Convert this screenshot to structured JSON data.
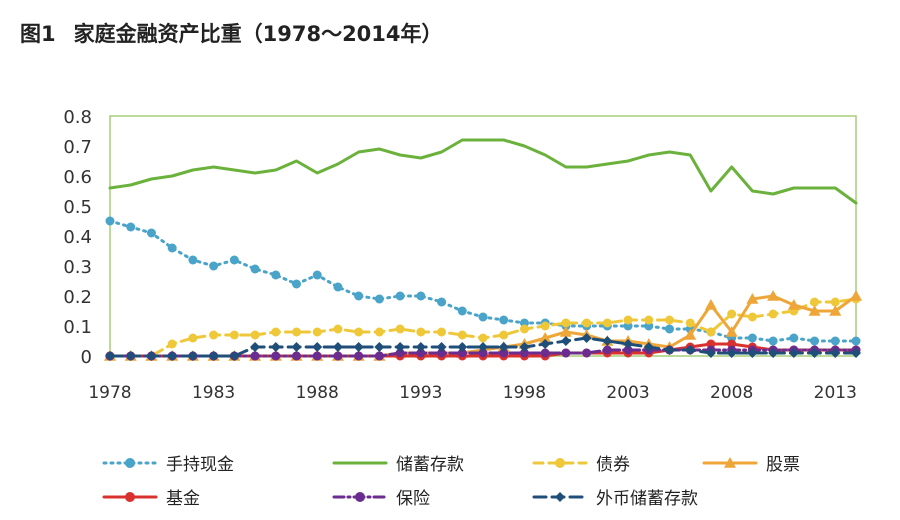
{
  "title": {
    "figure": "图1",
    "text": "家庭金融资产比重（1978～2014年）"
  },
  "chart_data": {
    "type": "line",
    "x_ticks": [
      "1978",
      "1983",
      "1988",
      "1993",
      "1998",
      "2003",
      "2008",
      "2013"
    ],
    "y_ticks": [
      "0.8",
      "0.7",
      "0.6",
      "0.5",
      "0.4",
      "0.3",
      "0.2",
      "0.1",
      "0"
    ],
    "ylim": [
      0,
      0.8
    ],
    "xlim": [
      1978,
      2014
    ],
    "grid": false,
    "legend_position": "bottom",
    "x": [
      1978,
      1979,
      1980,
      1981,
      1982,
      1983,
      1984,
      1985,
      1986,
      1987,
      1988,
      1989,
      1990,
      1991,
      1992,
      1993,
      1994,
      1995,
      1996,
      1997,
      1998,
      1999,
      2000,
      2001,
      2002,
      2003,
      2004,
      2005,
      2006,
      2007,
      2008,
      2009,
      2010,
      2011,
      2012,
      2013,
      2014
    ],
    "series": [
      {
        "name": "手持现金",
        "color": "#4aa3c8",
        "dash": "2,5",
        "marker": "circle",
        "values": [
          0.45,
          0.43,
          0.41,
          0.36,
          0.32,
          0.3,
          0.32,
          0.29,
          0.27,
          0.24,
          0.27,
          0.23,
          0.2,
          0.19,
          0.2,
          0.2,
          0.18,
          0.15,
          0.13,
          0.12,
          0.11,
          0.11,
          0.1,
          0.1,
          0.1,
          0.1,
          0.1,
          0.09,
          0.09,
          0.08,
          0.06,
          0.06,
          0.05,
          0.06,
          0.05,
          0.05,
          0.05
        ]
      },
      {
        "name": "储蓄存款",
        "color": "#6ab23c",
        "dash": "",
        "marker": "none",
        "values": [
          0.56,
          0.57,
          0.59,
          0.6,
          0.62,
          0.63,
          0.62,
          0.61,
          0.62,
          0.65,
          0.61,
          0.64,
          0.68,
          0.69,
          0.67,
          0.66,
          0.68,
          0.72,
          0.72,
          0.72,
          0.7,
          0.67,
          0.63,
          0.63,
          0.64,
          0.65,
          0.67,
          0.68,
          0.67,
          0.55,
          0.63,
          0.55,
          0.54,
          0.56,
          0.56,
          0.56,
          0.51
        ]
      },
      {
        "name": "债券",
        "color": "#efc83a",
        "dash": "9,6",
        "marker": "circle",
        "values": [
          0.0,
          0.0,
          0.0,
          0.04,
          0.06,
          0.07,
          0.07,
          0.07,
          0.08,
          0.08,
          0.08,
          0.09,
          0.08,
          0.08,
          0.09,
          0.08,
          0.08,
          0.07,
          0.06,
          0.07,
          0.09,
          0.1,
          0.11,
          0.11,
          0.11,
          0.12,
          0.12,
          0.12,
          0.11,
          0.08,
          0.14,
          0.13,
          0.14,
          0.15,
          0.18,
          0.18,
          0.19
        ]
      },
      {
        "name": "股票",
        "color": "#efa638",
        "dash": "",
        "marker": "triangle",
        "values": [
          0.0,
          0.0,
          0.0,
          0.0,
          0.0,
          0.0,
          0.0,
          0.0,
          0.0,
          0.0,
          0.0,
          0.0,
          0.0,
          0.0,
          0.01,
          0.01,
          0.01,
          0.01,
          0.02,
          0.03,
          0.04,
          0.06,
          0.08,
          0.07,
          0.05,
          0.05,
          0.04,
          0.03,
          0.07,
          0.17,
          0.08,
          0.19,
          0.2,
          0.17,
          0.15,
          0.15,
          0.2
        ]
      },
      {
        "name": "基金",
        "color": "#d9322e",
        "dash": "",
        "marker": "circle",
        "values": [
          0.0,
          0.0,
          0.0,
          0.0,
          0.0,
          0.0,
          0.0,
          0.0,
          0.0,
          0.0,
          0.0,
          0.0,
          0.0,
          0.0,
          0.0,
          0.0,
          0.0,
          0.0,
          0.0,
          0.0,
          0.0,
          0.0,
          0.01,
          0.01,
          0.01,
          0.01,
          0.01,
          0.02,
          0.03,
          0.04,
          0.04,
          0.03,
          0.02,
          0.02,
          0.02,
          0.02,
          0.02
        ]
      },
      {
        "name": "保险",
        "color": "#6a2c8e",
        "dash": "10,4,2,4",
        "marker": "circle",
        "values": [
          0.0,
          0.0,
          0.0,
          0.0,
          0.0,
          0.0,
          0.0,
          0.0,
          0.0,
          0.0,
          0.0,
          0.0,
          0.0,
          0.0,
          0.01,
          0.01,
          0.01,
          0.01,
          0.01,
          0.01,
          0.01,
          0.01,
          0.01,
          0.01,
          0.02,
          0.02,
          0.02,
          0.02,
          0.02,
          0.02,
          0.02,
          0.02,
          0.02,
          0.02,
          0.02,
          0.02,
          0.02
        ]
      },
      {
        "name": "外币储蓄存款",
        "color": "#1f4e79",
        "dash": "12,6",
        "marker": "diamond",
        "values": [
          0.0,
          0.0,
          0.0,
          0.0,
          0.0,
          0.0,
          0.0,
          0.03,
          0.03,
          0.03,
          0.03,
          0.03,
          0.03,
          0.03,
          0.03,
          0.03,
          0.03,
          0.03,
          0.03,
          0.03,
          0.03,
          0.04,
          0.05,
          0.06,
          0.05,
          0.04,
          0.03,
          0.02,
          0.02,
          0.01,
          0.01,
          0.01,
          0.01,
          0.01,
          0.01,
          0.01,
          0.01
        ]
      }
    ]
  }
}
